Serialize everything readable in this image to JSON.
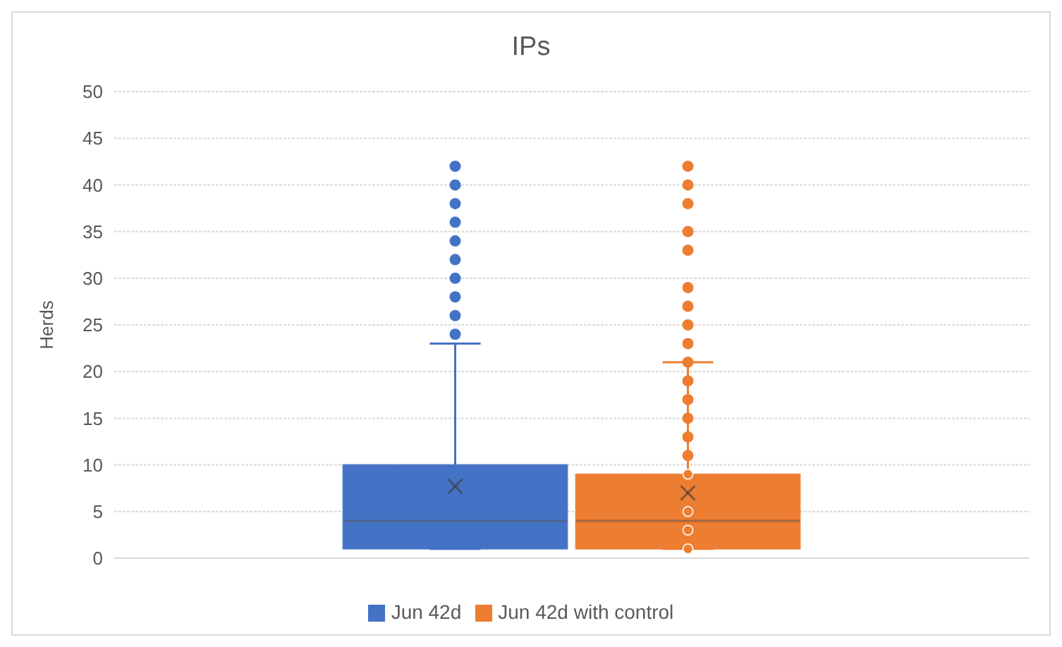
{
  "chart_data": {
    "type": "box",
    "title": "IPs",
    "ylabel": "Herds",
    "categories": [
      null
    ],
    "series": [
      {
        "name": "Jun 42d",
        "color": "#4472c4",
        "boxes": [
          {
            "low": 1,
            "q1": 1,
            "median": 4,
            "q3": 10,
            "high": 23,
            "mean": 7.7,
            "outliers": [
              24,
              26,
              28,
              30,
              32,
              34,
              36,
              38,
              40,
              42
            ]
          }
        ]
      },
      {
        "name": "Jun 42d with control",
        "color": "#ed7d31",
        "boxes": [
          {
            "low": 1,
            "q1": 1,
            "median": 4,
            "q3": 9,
            "high": 21,
            "mean": 7,
            "outliers": [
              1,
              3,
              5,
              9,
              11,
              13,
              15,
              17,
              19,
              21,
              23,
              25,
              27,
              29,
              33,
              35,
              38,
              40,
              42
            ]
          }
        ]
      }
    ],
    "ylim": [
      0,
      50
    ],
    "yticks": [
      0,
      5,
      10,
      15,
      20,
      25,
      30,
      35,
      40,
      45,
      50
    ],
    "grid": "y",
    "legend": "bottom",
    "tick_labels": "y",
    "marker": "circle"
  }
}
